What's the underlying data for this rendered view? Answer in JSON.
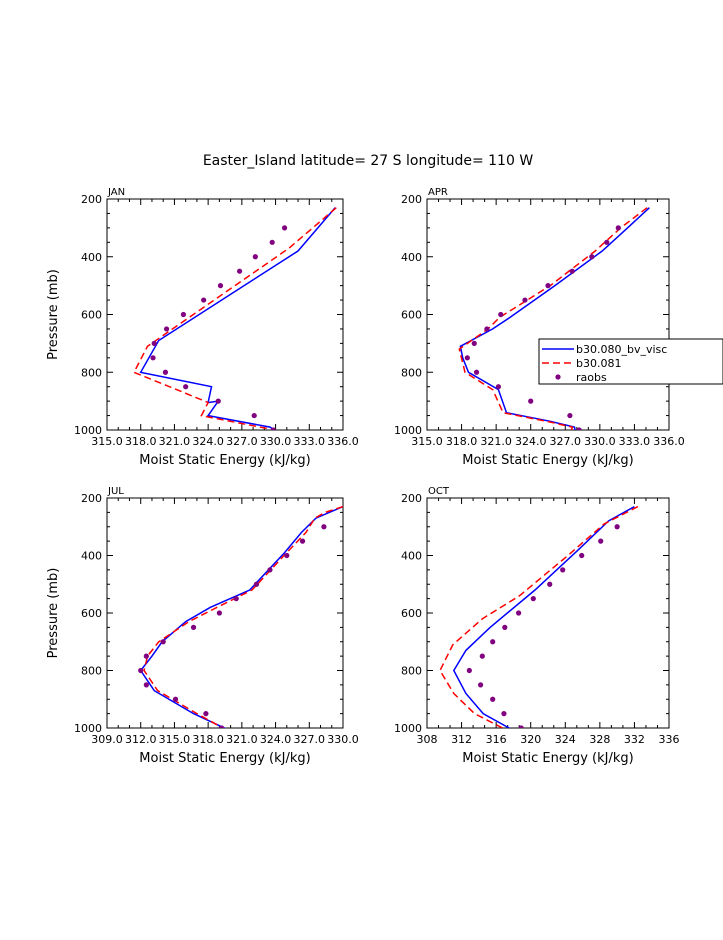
{
  "title": "Easter_Island  latitude= 27 S longitude= 110 W",
  "legend": {
    "items": [
      {
        "label": "b30.080_bv_visc",
        "color": "#0000ff",
        "style": "solid"
      },
      {
        "label": "b30.081",
        "color": "#ff0000",
        "style": "dashed"
      },
      {
        "label": "raobs",
        "color": "#800080",
        "style": "dot"
      }
    ]
  },
  "colors": {
    "series1": "#0000ff",
    "series2": "#ff0000",
    "obs": "#800080"
  },
  "chart_data": [
    {
      "type": "line",
      "panel": "JAN",
      "xlabel": "Moist Static Energy (kJ/kg)",
      "ylabel": "Pressure (mb)",
      "xlim": [
        315.0,
        336.0
      ],
      "ylim": [
        1000,
        200
      ],
      "xticks": [
        315.0,
        318.0,
        321.0,
        324.0,
        327.0,
        330.0,
        333.0,
        336.0
      ],
      "xtick_labels": [
        "315.0",
        "318.0",
        "321.0",
        "324.0",
        "327.0",
        "330.0",
        "333.0",
        "336.0"
      ],
      "yticks": [
        200,
        400,
        600,
        800,
        1000
      ],
      "ytick_labels": [
        "200",
        "400",
        "600",
        "800",
        "1000"
      ],
      "series": [
        {
          "name": "b30.080_bv_visc",
          "points": [
            [
              335.3,
              230
            ],
            [
              332.0,
              380
            ],
            [
              319.6,
              690
            ],
            [
              318.0,
              800
            ],
            [
              324.3,
              850
            ],
            [
              324.0,
              905
            ],
            [
              324.9,
              900
            ],
            [
              324.0,
              950
            ],
            [
              329.5,
              990
            ],
            [
              330.3,
              1010
            ]
          ]
        },
        {
          "name": "b30.081",
          "points": [
            [
              335.4,
              230
            ],
            [
              331.2,
              370
            ],
            [
              318.6,
              710
            ],
            [
              317.4,
              800
            ],
            [
              323.7,
              900
            ],
            [
              324.0,
              905
            ],
            [
              323.4,
              950
            ],
            [
              329.3,
              995
            ],
            [
              330.2,
              1010
            ]
          ]
        },
        {
          "name": "raobs",
          "points": [
            [
              330.8,
              300
            ],
            [
              329.7,
              350
            ],
            [
              328.2,
              400
            ],
            [
              326.8,
              450
            ],
            [
              325.1,
              500
            ],
            [
              323.6,
              550
            ],
            [
              321.8,
              600
            ],
            [
              320.3,
              650
            ],
            [
              319.2,
              700
            ],
            [
              319.1,
              750
            ],
            [
              320.2,
              800
            ],
            [
              322.0,
              850
            ],
            [
              324.9,
              900
            ],
            [
              328.1,
              950
            ],
            [
              329.8,
              1000
            ]
          ]
        }
      ]
    },
    {
      "type": "line",
      "panel": "APR",
      "xlabel": "Moist Static Energy (kJ/kg)",
      "ylabel": "",
      "xlim": [
        315.0,
        336.0
      ],
      "ylim": [
        1000,
        200
      ],
      "xticks": [
        315.0,
        318.0,
        321.0,
        324.0,
        327.0,
        330.0,
        333.0,
        336.0
      ],
      "xtick_labels": [
        "315.0",
        "318.0",
        "321.0",
        "324.0",
        "327.0",
        "330.0",
        "333.0",
        "336.0"
      ],
      "yticks": [
        200,
        400,
        600,
        800,
        1000
      ],
      "ytick_labels": [
        "200",
        "400",
        "600",
        "800",
        "1000"
      ],
      "series": [
        {
          "name": "b30.080_bv_visc",
          "points": [
            [
              334.3,
              230
            ],
            [
              332.4,
              300
            ],
            [
              330.2,
              380
            ],
            [
              326.1,
              500
            ],
            [
              322.2,
              610
            ],
            [
              320.7,
              650
            ],
            [
              317.9,
              710
            ],
            [
              318.1,
              750
            ],
            [
              318.6,
              800
            ],
            [
              321.2,
              860
            ],
            [
              321.9,
              940
            ],
            [
              325.7,
              970
            ],
            [
              327.8,
              990
            ],
            [
              327.9,
              1010
            ]
          ]
        },
        {
          "name": "b30.081",
          "points": [
            [
              334.1,
              230
            ],
            [
              331.8,
              300
            ],
            [
              329.6,
              380
            ],
            [
              325.7,
              500
            ],
            [
              321.3,
              610
            ],
            [
              320.3,
              650
            ],
            [
              317.8,
              720
            ],
            [
              318.3,
              800
            ],
            [
              320.7,
              860
            ],
            [
              321.6,
              940
            ],
            [
              325.4,
              970
            ],
            [
              327.6,
              990
            ],
            [
              327.5,
              1010
            ]
          ]
        },
        {
          "name": "raobs",
          "points": [
            [
              331.6,
              300
            ],
            [
              330.6,
              350
            ],
            [
              329.3,
              400
            ],
            [
              327.6,
              450
            ],
            [
              325.5,
              500
            ],
            [
              323.5,
              550
            ],
            [
              321.4,
              600
            ],
            [
              320.2,
              650
            ],
            [
              319.1,
              700
            ],
            [
              318.5,
              750
            ],
            [
              319.3,
              800
            ],
            [
              321.2,
              850
            ],
            [
              324.0,
              900
            ],
            [
              327.4,
              950
            ],
            [
              328.2,
              1000
            ]
          ]
        }
      ]
    },
    {
      "type": "line",
      "panel": "JUL",
      "xlabel": "Moist Static Energy (kJ/kg)",
      "ylabel": "Pressure (mb)",
      "xlim": [
        309.0,
        330.0
      ],
      "ylim": [
        1000,
        200
      ],
      "xticks": [
        309.0,
        312.0,
        315.0,
        318.0,
        321.0,
        324.0,
        327.0,
        330.0
      ],
      "xtick_labels": [
        "309.0",
        "312.0",
        "315.0",
        "318.0",
        "321.0",
        "324.0",
        "327.0",
        "330.0"
      ],
      "yticks": [
        200,
        400,
        600,
        800,
        1000
      ],
      "ytick_labels": [
        "200",
        "400",
        "600",
        "800",
        "1000"
      ],
      "series": [
        {
          "name": "b30.080_bv_visc",
          "points": [
            [
              330.0,
              230
            ],
            [
              327.6,
              270
            ],
            [
              326.3,
              320
            ],
            [
              324.8,
              390
            ],
            [
              321.7,
              520
            ],
            [
              318.2,
              580
            ],
            [
              316.0,
              630
            ],
            [
              313.9,
              700
            ],
            [
              313.0,
              750
            ],
            [
              312.0,
              800
            ],
            [
              313.2,
              870
            ],
            [
              316.7,
              950
            ],
            [
              320.0,
              1010
            ]
          ]
        },
        {
          "name": "b30.081",
          "points": [
            [
              330.0,
              230
            ],
            [
              328.4,
              250
            ],
            [
              327.5,
              270
            ],
            [
              326.7,
              320
            ],
            [
              325.0,
              390
            ],
            [
              321.9,
              520
            ],
            [
              318.8,
              580
            ],
            [
              316.3,
              630
            ],
            [
              313.6,
              700
            ],
            [
              312.6,
              750
            ],
            [
              312.3,
              800
            ],
            [
              313.5,
              870
            ],
            [
              317.0,
              950
            ],
            [
              319.3,
              1000
            ]
          ]
        },
        {
          "name": "raobs",
          "points": [
            [
              328.3,
              300
            ],
            [
              326.4,
              350
            ],
            [
              325.0,
              400
            ],
            [
              323.5,
              450
            ],
            [
              322.3,
              500
            ],
            [
              320.5,
              550
            ],
            [
              319.0,
              600
            ],
            [
              316.7,
              650
            ],
            [
              314.0,
              700
            ],
            [
              312.5,
              750
            ],
            [
              312.0,
              800
            ],
            [
              312.5,
              850
            ],
            [
              315.1,
              900
            ],
            [
              317.8,
              950
            ],
            [
              319.2,
              1000
            ]
          ]
        }
      ]
    },
    {
      "type": "line",
      "panel": "OCT",
      "xlabel": "Moist Static Energy (kJ/kg)",
      "ylabel": "",
      "xlim": [
        308,
        336
      ],
      "ylim": [
        1000,
        200
      ],
      "xticks": [
        308,
        312,
        316,
        320,
        324,
        328,
        332,
        336
      ],
      "xtick_labels": [
        "308",
        "312",
        "316",
        "320",
        "324",
        "328",
        "332",
        "336"
      ],
      "yticks": [
        200,
        400,
        600,
        800,
        1000
      ],
      "ytick_labels": [
        "200",
        "400",
        "600",
        "800",
        "1000"
      ],
      "series": [
        {
          "name": "b30.080_bv_visc",
          "points": [
            [
              332.0,
              230
            ],
            [
              329.0,
              280
            ],
            [
              325.5,
              380
            ],
            [
              320.5,
              520
            ],
            [
              315.3,
              650
            ],
            [
              312.5,
              730
            ],
            [
              311.1,
              800
            ],
            [
              312.5,
              880
            ],
            [
              314.5,
              950
            ],
            [
              318.1,
              1010
            ]
          ]
        },
        {
          "name": "b30.081",
          "points": [
            [
              332.4,
              230
            ],
            [
              328.5,
              290
            ],
            [
              324.3,
              400
            ],
            [
              318.7,
              540
            ],
            [
              314.4,
              620
            ],
            [
              311.0,
              710
            ],
            [
              309.5,
              800
            ],
            [
              311.1,
              880
            ],
            [
              313.5,
              950
            ],
            [
              317.4,
              1010
            ]
          ]
        },
        {
          "name": "raobs",
          "points": [
            [
              330.0,
              300
            ],
            [
              328.1,
              350
            ],
            [
              325.9,
              400
            ],
            [
              323.7,
              450
            ],
            [
              322.2,
              500
            ],
            [
              320.3,
              550
            ],
            [
              318.6,
              600
            ],
            [
              317.0,
              650
            ],
            [
              315.6,
              700
            ],
            [
              314.4,
              750
            ],
            [
              312.9,
              800
            ],
            [
              314.2,
              850
            ],
            [
              315.6,
              900
            ],
            [
              316.9,
              950
            ],
            [
              318.9,
              1000
            ]
          ]
        }
      ]
    }
  ]
}
